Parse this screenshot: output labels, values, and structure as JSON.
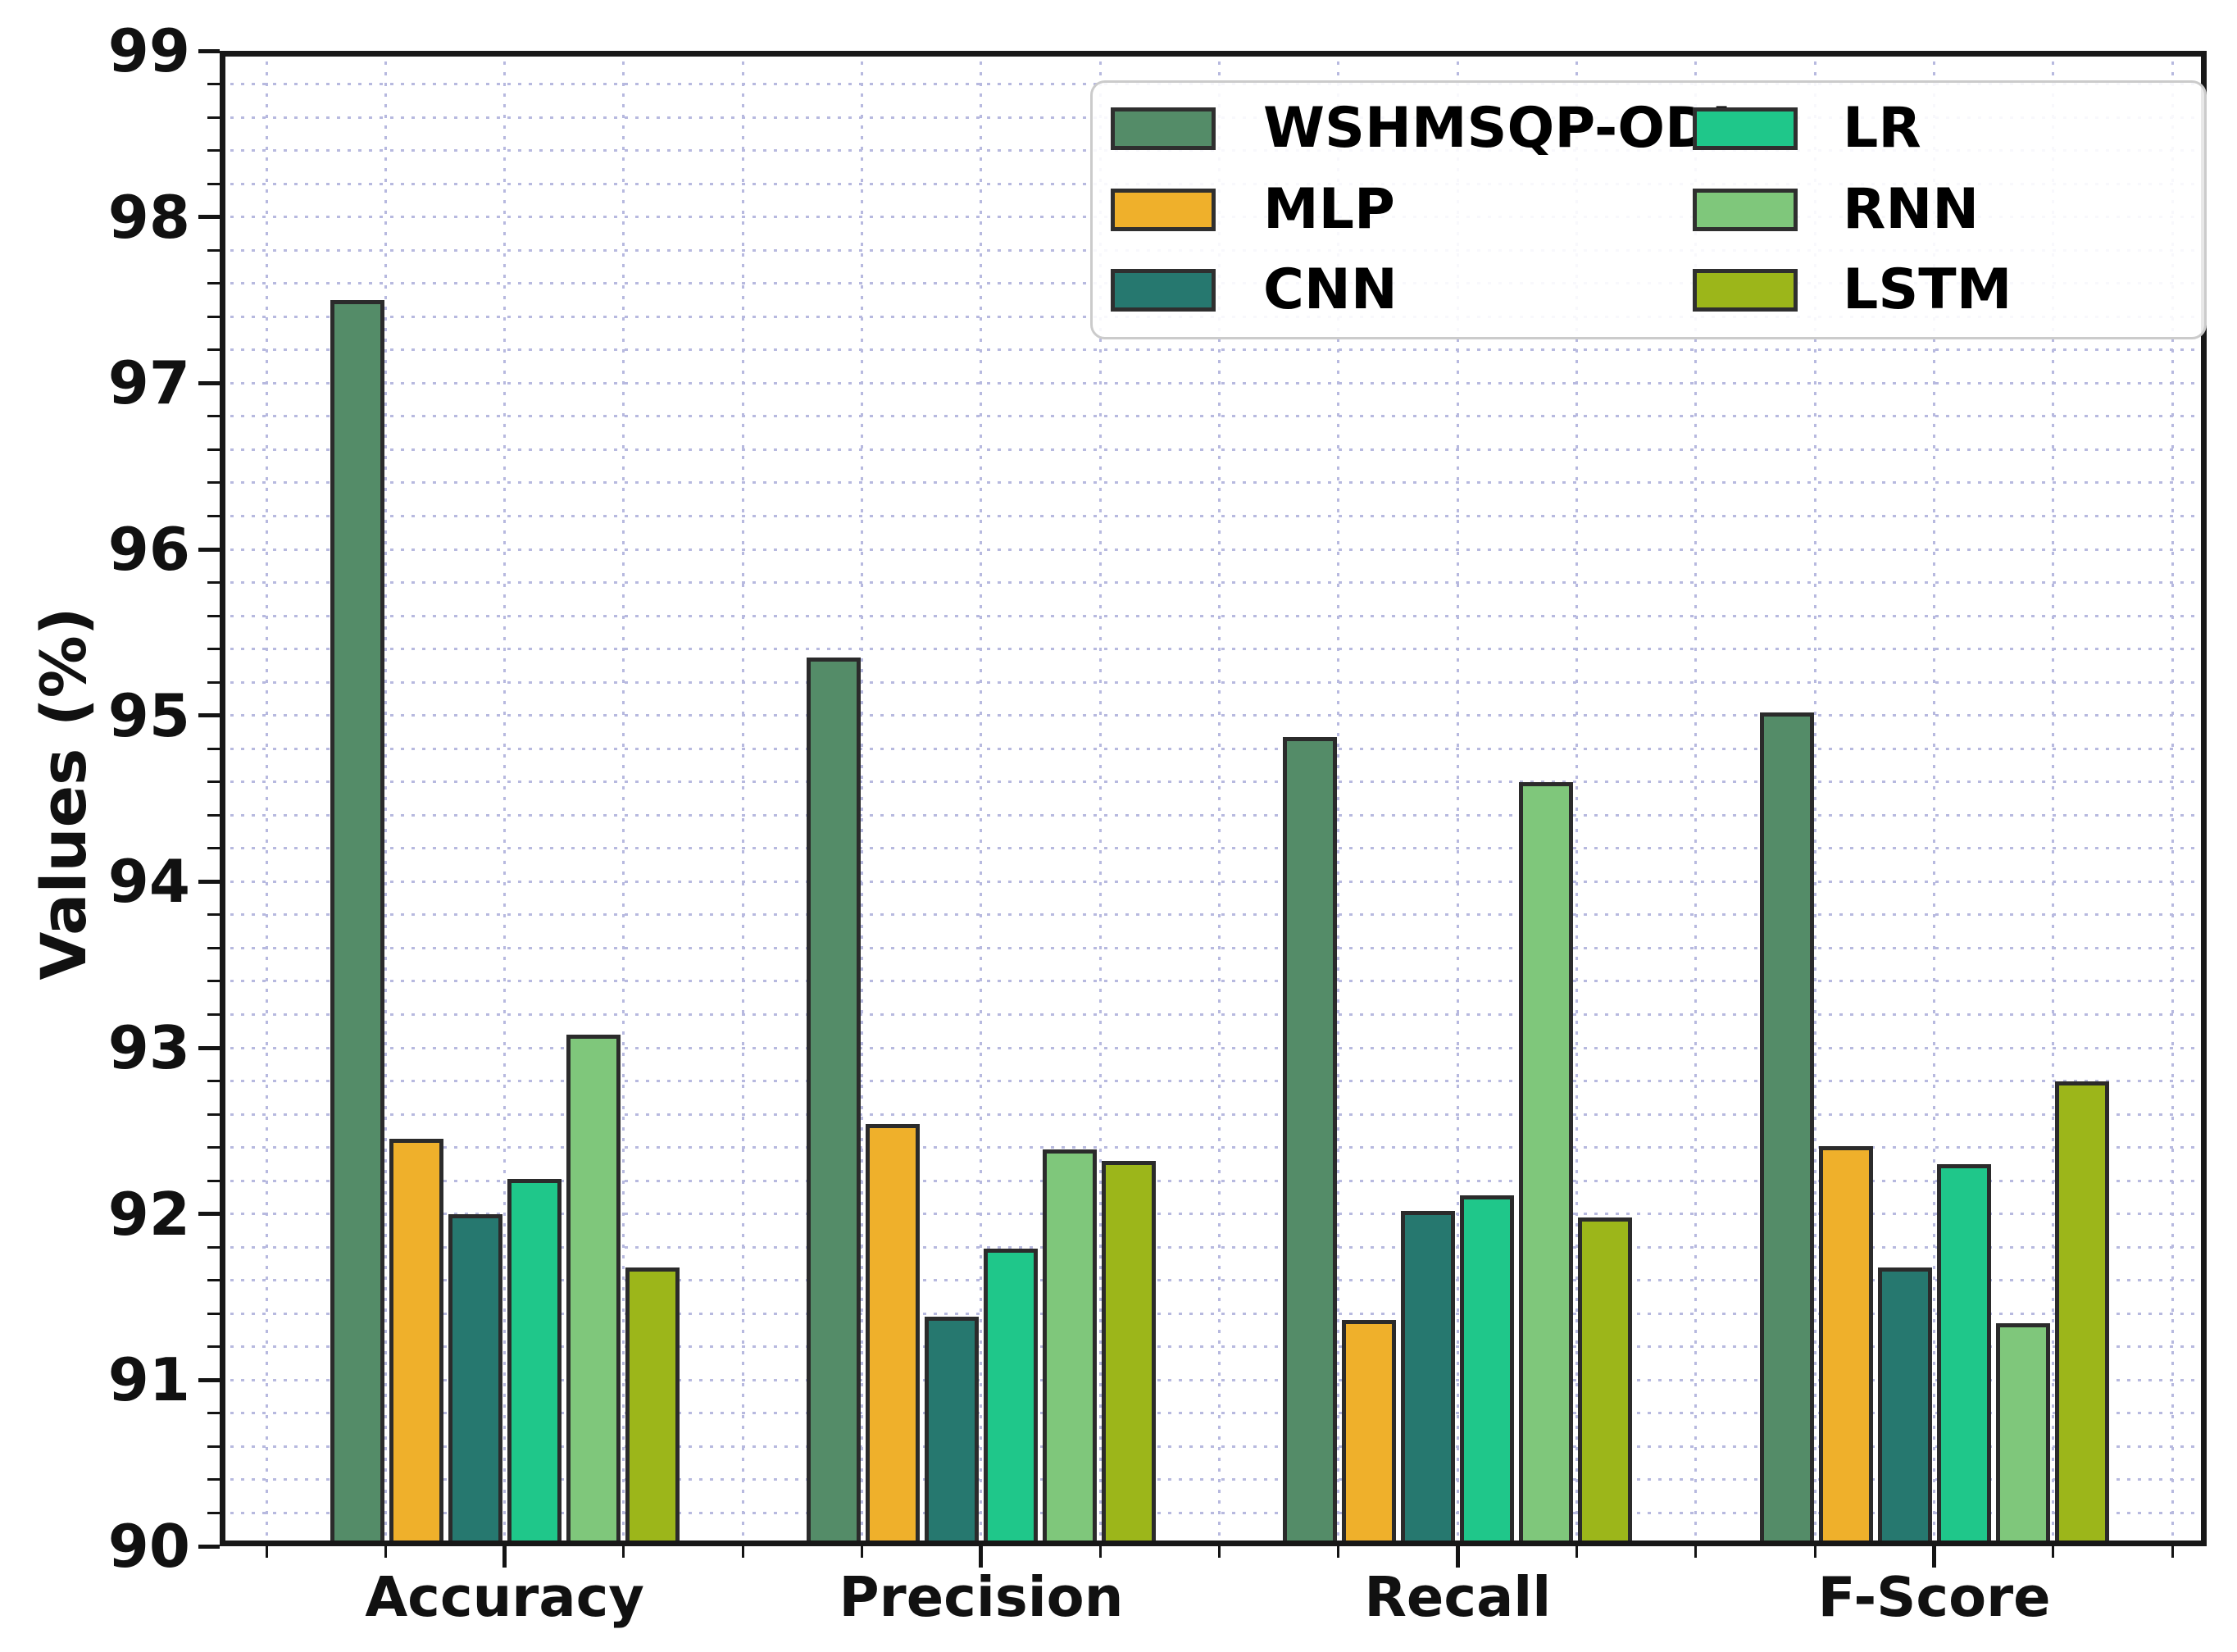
{
  "chart_data": {
    "type": "bar",
    "title": "",
    "xlabel": "",
    "ylabel": "Values (%)",
    "ylim": [
      90,
      99
    ],
    "yticks": [
      90,
      91,
      92,
      93,
      94,
      95,
      96,
      97,
      98,
      99
    ],
    "ytick_minor_step": 0.2,
    "grid": {
      "style": "dotted",
      "color": "#b7b9df",
      "minor": true,
      "axes": "both"
    },
    "legend_position": "upper right",
    "legend_columns": 2,
    "categories": [
      "Accuracy",
      "Precision",
      "Recall",
      "F-Score"
    ],
    "series": [
      {
        "name": "WSHMSQP-ODL",
        "color": "#548c68",
        "values": [
          97.5,
          95.35,
          94.87,
          95.02
        ]
      },
      {
        "name": "MLP",
        "color": "#efb02b",
        "values": [
          92.45,
          92.54,
          91.36,
          92.41
        ]
      },
      {
        "name": "CNN",
        "color": "#26786f",
        "values": [
          92.0,
          91.38,
          92.02,
          91.68
        ]
      },
      {
        "name": "LR",
        "color": "#1fc78a",
        "values": [
          92.21,
          91.79,
          92.11,
          92.3
        ]
      },
      {
        "name": "RNN",
        "color": "#7fc77b",
        "values": [
          93.08,
          92.39,
          94.6,
          91.34
        ]
      },
      {
        "name": "LSTM",
        "color": "#9cb61a",
        "values": [
          91.68,
          92.32,
          91.98,
          92.8
        ]
      }
    ],
    "colors": {
      "axis": "#141414",
      "bar_border": "#2b2b2b",
      "grid": "#b7b9df",
      "legend_border": "#cbcbcb"
    }
  }
}
